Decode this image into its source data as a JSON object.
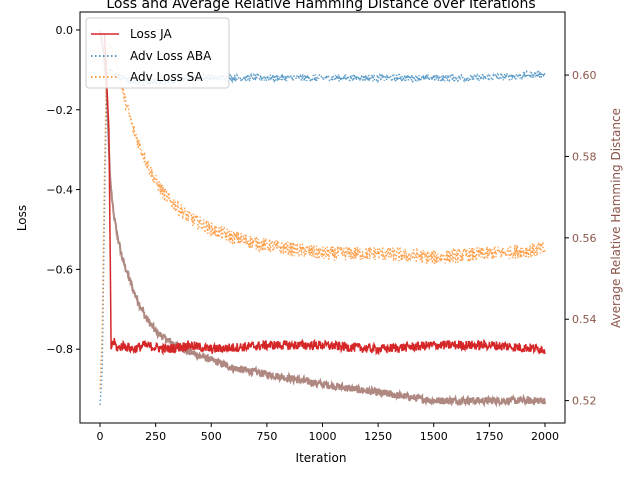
{
  "chart_data": {
    "type": "line",
    "title": "Loss and Average Relative Hamming Distance over Iterations",
    "xlabel": "Iteration",
    "ylabel": "Loss",
    "y2label": "Average Relative Hamming Distance",
    "xlim": [
      -90,
      2090
    ],
    "ylim": [
      -0.985,
      0.045
    ],
    "y2lim": [
      0.5145,
      0.6155
    ],
    "xticks": [
      0,
      250,
      500,
      750,
      1000,
      1250,
      1500,
      1750,
      2000
    ],
    "yticks": [
      -0.8,
      -0.6,
      -0.4,
      -0.2,
      0.0
    ],
    "y2ticks": [
      0.52,
      0.54,
      0.56,
      0.58,
      0.6
    ],
    "grid": false,
    "legend_position": "top-left",
    "series": [
      {
        "name": "Loss JA",
        "axis": "left",
        "color": "#d62728",
        "style": "solid",
        "x": [
          0,
          20,
          40,
          50,
          60,
          80,
          100,
          150,
          200,
          300,
          400,
          500,
          750,
          1000,
          1250,
          1500,
          1750,
          2000
        ],
        "values": [
          -0.01,
          -0.01,
          -0.25,
          -0.8,
          -0.78,
          -0.8,
          -0.79,
          -0.8,
          -0.79,
          -0.8,
          -0.79,
          -0.8,
          -0.79,
          -0.79,
          -0.8,
          -0.79,
          -0.79,
          -0.8
        ]
      },
      {
        "name": "Adv Loss ABA",
        "axis": "left",
        "color": "#1f77b4",
        "style": "dotted",
        "x": [
          0,
          10,
          20,
          30,
          40,
          60,
          100,
          150,
          200,
          300,
          400,
          500,
          750,
          1000,
          1250,
          1500,
          1750,
          2000
        ],
        "values": [
          -0.94,
          -0.85,
          -0.45,
          -0.12,
          -0.1,
          -0.11,
          -0.12,
          -0.13,
          -0.13,
          -0.13,
          -0.12,
          -0.12,
          -0.12,
          -0.12,
          -0.12,
          -0.12,
          -0.12,
          -0.11
        ]
      },
      {
        "name": "Adv Loss SA",
        "axis": "left",
        "color": "#ff7f0e",
        "style": "dotted",
        "x": [
          0,
          10,
          20,
          30,
          40,
          60,
          80,
          100,
          150,
          200,
          250,
          300,
          400,
          500,
          600,
          750,
          1000,
          1250,
          1500,
          1750,
          2000
        ],
        "values": [
          -0.9,
          -0.75,
          -0.35,
          -0.08,
          -0.03,
          -0.06,
          -0.1,
          -0.15,
          -0.25,
          -0.32,
          -0.38,
          -0.42,
          -0.47,
          -0.5,
          -0.52,
          -0.54,
          -0.56,
          -0.56,
          -0.57,
          -0.56,
          -0.55
        ]
      },
      {
        "name": "Average Relative Hamming Distance",
        "axis": "right",
        "color": "#8c564b",
        "style": "solid",
        "x": [
          0,
          15,
          30,
          45,
          60,
          80,
          100,
          150,
          200,
          250,
          300,
          400,
          500,
          600,
          700,
          800,
          1000,
          1250,
          1500,
          1750,
          2000
        ],
        "values": [
          0.611,
          0.606,
          0.596,
          0.575,
          0.566,
          0.56,
          0.555,
          0.547,
          0.541,
          0.537,
          0.535,
          0.532,
          0.53,
          0.528,
          0.527,
          0.526,
          0.524,
          0.522,
          0.52,
          0.52,
          0.52
        ]
      }
    ],
    "legend": [
      "Loss JA",
      "Adv Loss ABA",
      "Adv Loss SA"
    ]
  }
}
